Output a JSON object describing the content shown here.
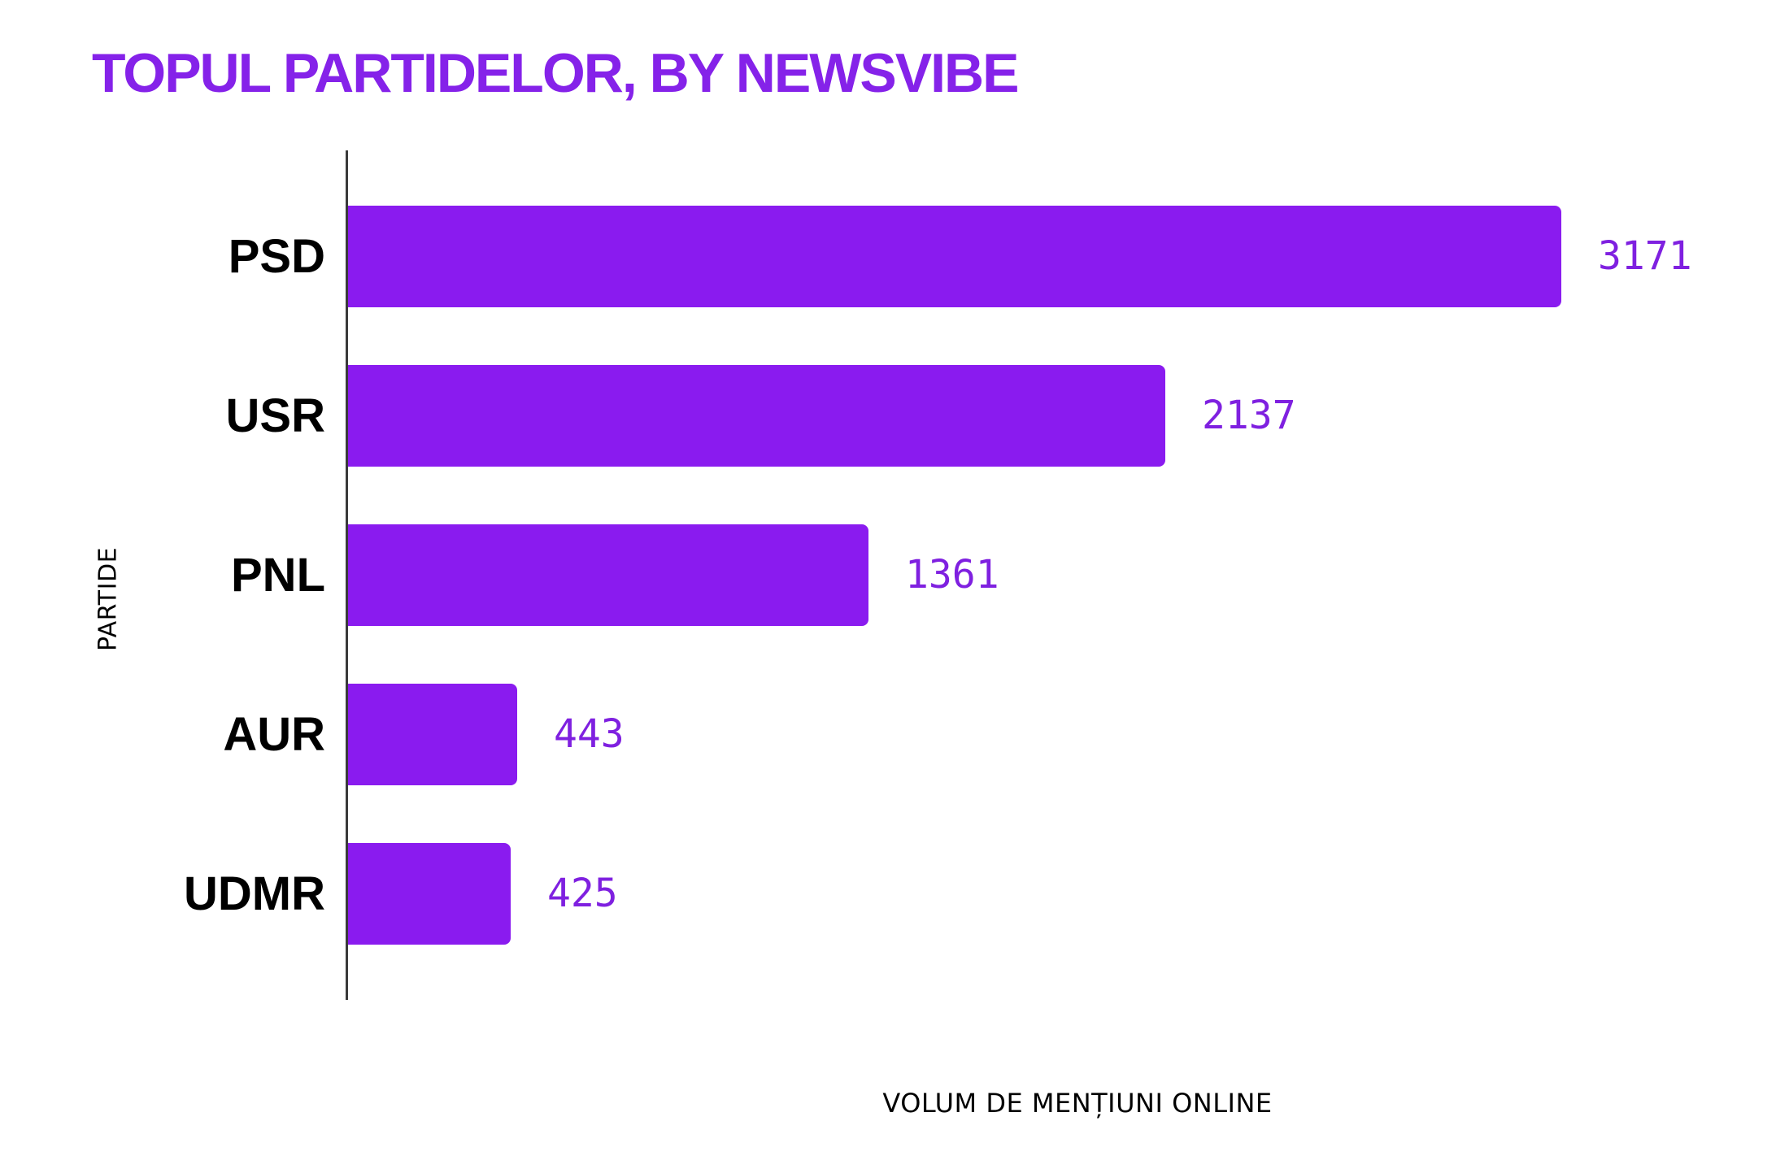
{
  "title": "TOPUL PARTIDELOR, BY NEWSVIBE",
  "colors": {
    "background": "#ffffff",
    "title_text": "#8522e9",
    "bar_fill": "#8a1bef",
    "value_text": "#7f20e0",
    "category_text": "#000000",
    "axis_line": "#3a3a3a"
  },
  "chart_data": {
    "type": "bar",
    "orientation": "horizontal",
    "title": "TOPUL PARTIDELOR, BY NEWSVIBE",
    "categories": [
      "PSD",
      "USR",
      "PNL",
      "AUR",
      "UDMR"
    ],
    "values": [
      3171,
      2137,
      1361,
      443,
      425
    ],
    "value_labels": [
      "3171",
      "2137",
      "1361",
      "443",
      "425"
    ],
    "xlabel": "VOLUM DE MENȚIUNI ONLINE",
    "ylabel": "PARTIDE",
    "xlim": [
      0,
      3171
    ],
    "grid": false,
    "legend": false,
    "value_labels_shown": true,
    "bar_color": "#8a1bef"
  }
}
